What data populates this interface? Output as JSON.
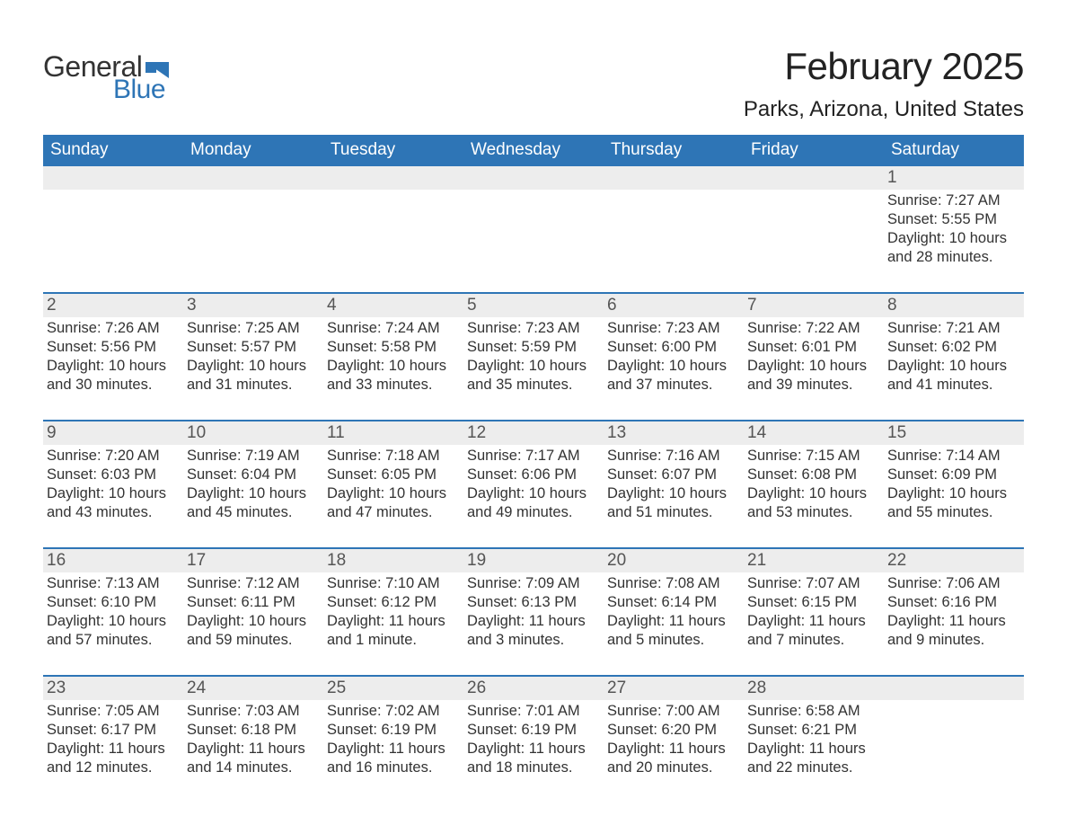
{
  "logo": {
    "text1": "General",
    "text2": "Blue",
    "flag_color": "#2e75b6"
  },
  "title": "February 2025",
  "location": "Parks, Arizona, United States",
  "colors": {
    "header_bg": "#2e75b6",
    "header_text": "#ffffff",
    "row_divider": "#2e75b6",
    "daynum_bg": "#ededed",
    "text": "#333333"
  },
  "days_of_week": [
    "Sunday",
    "Monday",
    "Tuesday",
    "Wednesday",
    "Thursday",
    "Friday",
    "Saturday"
  ],
  "weeks": [
    [
      null,
      null,
      null,
      null,
      null,
      null,
      {
        "n": "1",
        "sunrise": "7:27 AM",
        "sunset": "5:55 PM",
        "daylight": "10 hours and 28 minutes."
      }
    ],
    [
      {
        "n": "2",
        "sunrise": "7:26 AM",
        "sunset": "5:56 PM",
        "daylight": "10 hours and 30 minutes."
      },
      {
        "n": "3",
        "sunrise": "7:25 AM",
        "sunset": "5:57 PM",
        "daylight": "10 hours and 31 minutes."
      },
      {
        "n": "4",
        "sunrise": "7:24 AM",
        "sunset": "5:58 PM",
        "daylight": "10 hours and 33 minutes."
      },
      {
        "n": "5",
        "sunrise": "7:23 AM",
        "sunset": "5:59 PM",
        "daylight": "10 hours and 35 minutes."
      },
      {
        "n": "6",
        "sunrise": "7:23 AM",
        "sunset": "6:00 PM",
        "daylight": "10 hours and 37 minutes."
      },
      {
        "n": "7",
        "sunrise": "7:22 AM",
        "sunset": "6:01 PM",
        "daylight": "10 hours and 39 minutes."
      },
      {
        "n": "8",
        "sunrise": "7:21 AM",
        "sunset": "6:02 PM",
        "daylight": "10 hours and 41 minutes."
      }
    ],
    [
      {
        "n": "9",
        "sunrise": "7:20 AM",
        "sunset": "6:03 PM",
        "daylight": "10 hours and 43 minutes."
      },
      {
        "n": "10",
        "sunrise": "7:19 AM",
        "sunset": "6:04 PM",
        "daylight": "10 hours and 45 minutes."
      },
      {
        "n": "11",
        "sunrise": "7:18 AM",
        "sunset": "6:05 PM",
        "daylight": "10 hours and 47 minutes."
      },
      {
        "n": "12",
        "sunrise": "7:17 AM",
        "sunset": "6:06 PM",
        "daylight": "10 hours and 49 minutes."
      },
      {
        "n": "13",
        "sunrise": "7:16 AM",
        "sunset": "6:07 PM",
        "daylight": "10 hours and 51 minutes."
      },
      {
        "n": "14",
        "sunrise": "7:15 AM",
        "sunset": "6:08 PM",
        "daylight": "10 hours and 53 minutes."
      },
      {
        "n": "15",
        "sunrise": "7:14 AM",
        "sunset": "6:09 PM",
        "daylight": "10 hours and 55 minutes."
      }
    ],
    [
      {
        "n": "16",
        "sunrise": "7:13 AM",
        "sunset": "6:10 PM",
        "daylight": "10 hours and 57 minutes."
      },
      {
        "n": "17",
        "sunrise": "7:12 AM",
        "sunset": "6:11 PM",
        "daylight": "10 hours and 59 minutes."
      },
      {
        "n": "18",
        "sunrise": "7:10 AM",
        "sunset": "6:12 PM",
        "daylight": "11 hours and 1 minute."
      },
      {
        "n": "19",
        "sunrise": "7:09 AM",
        "sunset": "6:13 PM",
        "daylight": "11 hours and 3 minutes."
      },
      {
        "n": "20",
        "sunrise": "7:08 AM",
        "sunset": "6:14 PM",
        "daylight": "11 hours and 5 minutes."
      },
      {
        "n": "21",
        "sunrise": "7:07 AM",
        "sunset": "6:15 PM",
        "daylight": "11 hours and 7 minutes."
      },
      {
        "n": "22",
        "sunrise": "7:06 AM",
        "sunset": "6:16 PM",
        "daylight": "11 hours and 9 minutes."
      }
    ],
    [
      {
        "n": "23",
        "sunrise": "7:05 AM",
        "sunset": "6:17 PM",
        "daylight": "11 hours and 12 minutes."
      },
      {
        "n": "24",
        "sunrise": "7:03 AM",
        "sunset": "6:18 PM",
        "daylight": "11 hours and 14 minutes."
      },
      {
        "n": "25",
        "sunrise": "7:02 AM",
        "sunset": "6:19 PM",
        "daylight": "11 hours and 16 minutes."
      },
      {
        "n": "26",
        "sunrise": "7:01 AM",
        "sunset": "6:19 PM",
        "daylight": "11 hours and 18 minutes."
      },
      {
        "n": "27",
        "sunrise": "7:00 AM",
        "sunset": "6:20 PM",
        "daylight": "11 hours and 20 minutes."
      },
      {
        "n": "28",
        "sunrise": "6:58 AM",
        "sunset": "6:21 PM",
        "daylight": "11 hours and 22 minutes."
      },
      null
    ]
  ],
  "labels": {
    "sunrise": "Sunrise:",
    "sunset": "Sunset:",
    "daylight": "Daylight:"
  }
}
